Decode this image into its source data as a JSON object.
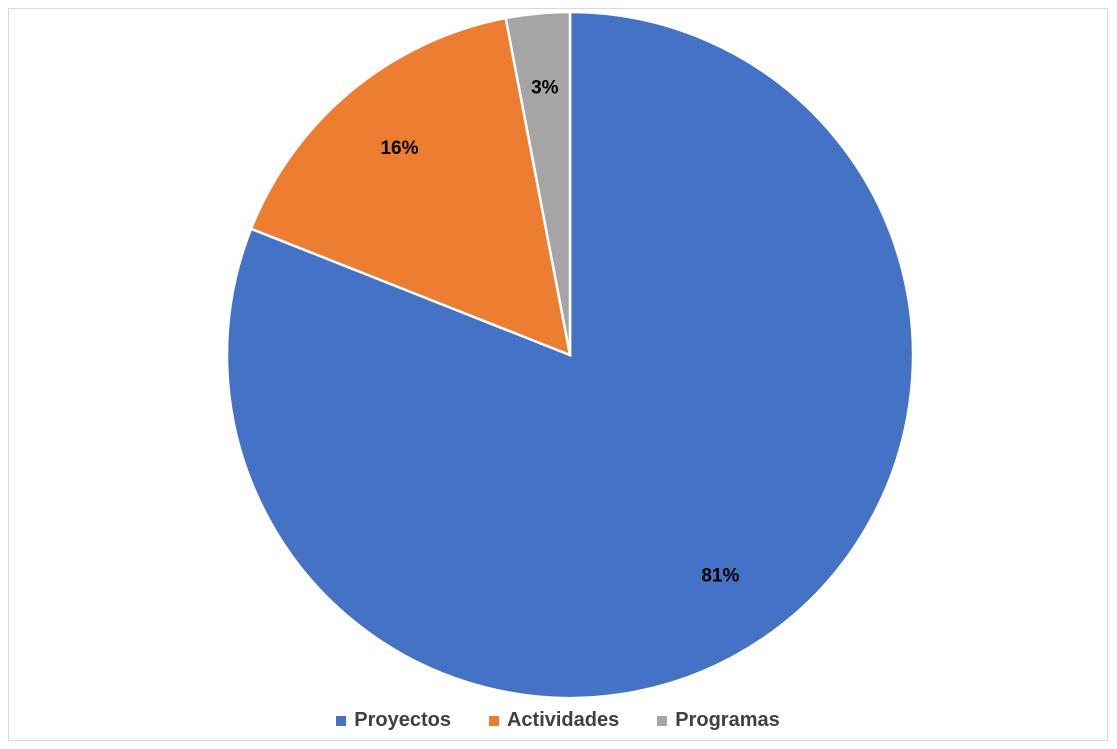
{
  "chart_data": {
    "type": "pie",
    "title": "",
    "categories": [
      "Proyectos",
      "Actividades",
      "Programas"
    ],
    "values": [
      81,
      16,
      3
    ],
    "value_labels": [
      "81%",
      "16%",
      "3%"
    ],
    "colors": [
      "#4472C4",
      "#ED7D31",
      "#A5A5A5"
    ],
    "start_angle_deg": 0,
    "direction": "clockwise",
    "legend_position": "bottom"
  }
}
